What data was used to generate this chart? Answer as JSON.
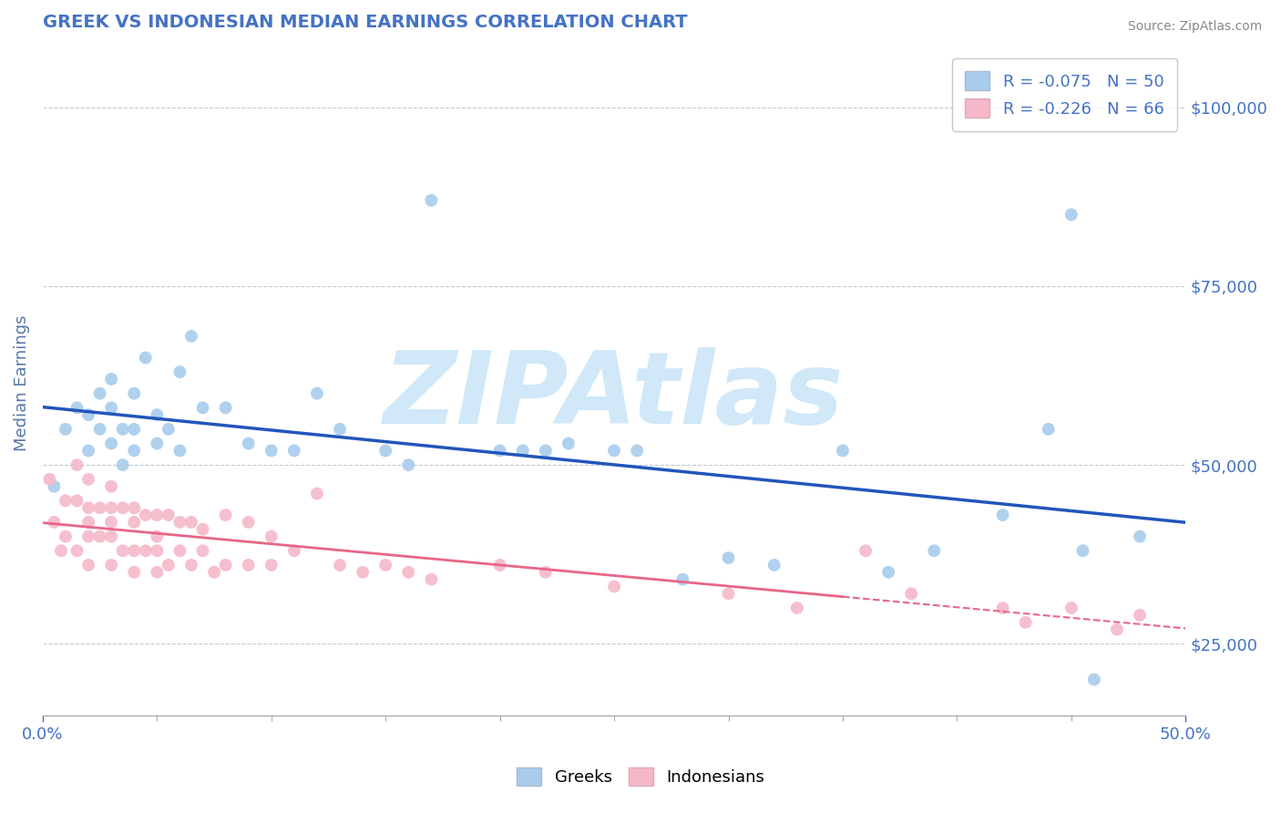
{
  "title": "GREEK VS INDONESIAN MEDIAN EARNINGS CORRELATION CHART",
  "source": "Source: ZipAtlas.com",
  "ylabel": "Median Earnings",
  "xlim": [
    0.0,
    0.5
  ],
  "ylim": [
    15000,
    108000
  ],
  "yticks": [
    25000,
    50000,
    75000,
    100000
  ],
  "xticks": [
    0.0,
    0.5
  ],
  "greeks_R": -0.075,
  "greeks_N": 50,
  "indonesians_R": -0.226,
  "indonesians_N": 66,
  "greek_color": "#a8ccec",
  "indonesian_color": "#f5b8c8",
  "greek_line_color": "#2255bb",
  "indonesian_line_color": "#e86688",
  "background_color": "#ffffff",
  "title_color": "#4472c4",
  "axis_label_color": "#5577aa",
  "tick_label_color": "#4472c4",
  "watermark": "ZIPAtlas",
  "watermark_color": "#d0e8f8",
  "greeks_x": [
    0.005,
    0.01,
    0.015,
    0.02,
    0.02,
    0.025,
    0.025,
    0.03,
    0.03,
    0.03,
    0.035,
    0.035,
    0.04,
    0.04,
    0.04,
    0.045,
    0.05,
    0.05,
    0.055,
    0.06,
    0.06,
    0.065,
    0.07,
    0.08,
    0.09,
    0.1,
    0.11,
    0.12,
    0.13,
    0.15,
    0.16,
    0.17,
    0.2,
    0.21,
    0.22,
    0.23,
    0.25,
    0.26,
    0.28,
    0.3,
    0.32,
    0.35,
    0.37,
    0.39,
    0.42,
    0.44,
    0.45,
    0.46,
    0.455,
    0.48
  ],
  "greeks_y": [
    47000,
    55000,
    58000,
    57000,
    52000,
    60000,
    55000,
    62000,
    58000,
    53000,
    55000,
    50000,
    60000,
    55000,
    52000,
    65000,
    57000,
    53000,
    55000,
    63000,
    52000,
    68000,
    58000,
    58000,
    53000,
    52000,
    52000,
    60000,
    55000,
    52000,
    50000,
    87000,
    52000,
    52000,
    52000,
    53000,
    52000,
    52000,
    34000,
    37000,
    36000,
    52000,
    35000,
    38000,
    43000,
    55000,
    85000,
    20000,
    38000,
    40000
  ],
  "indonesians_x": [
    0.003,
    0.005,
    0.008,
    0.01,
    0.01,
    0.015,
    0.015,
    0.015,
    0.02,
    0.02,
    0.02,
    0.02,
    0.02,
    0.025,
    0.025,
    0.03,
    0.03,
    0.03,
    0.03,
    0.03,
    0.035,
    0.035,
    0.04,
    0.04,
    0.04,
    0.04,
    0.045,
    0.045,
    0.05,
    0.05,
    0.05,
    0.05,
    0.055,
    0.055,
    0.06,
    0.06,
    0.065,
    0.065,
    0.07,
    0.07,
    0.075,
    0.08,
    0.08,
    0.09,
    0.09,
    0.1,
    0.1,
    0.11,
    0.12,
    0.13,
    0.14,
    0.15,
    0.16,
    0.17,
    0.2,
    0.22,
    0.25,
    0.3,
    0.33,
    0.36,
    0.38,
    0.42,
    0.43,
    0.45,
    0.47,
    0.48
  ],
  "indonesians_y": [
    48000,
    42000,
    38000,
    45000,
    40000,
    50000,
    45000,
    38000,
    48000,
    44000,
    42000,
    40000,
    36000,
    44000,
    40000,
    47000,
    44000,
    42000,
    40000,
    36000,
    44000,
    38000,
    44000,
    42000,
    38000,
    35000,
    43000,
    38000,
    43000,
    40000,
    38000,
    35000,
    43000,
    36000,
    42000,
    38000,
    42000,
    36000,
    41000,
    38000,
    35000,
    43000,
    36000,
    42000,
    36000,
    40000,
    36000,
    38000,
    46000,
    36000,
    35000,
    36000,
    35000,
    34000,
    36000,
    35000,
    33000,
    32000,
    30000,
    38000,
    32000,
    30000,
    28000,
    30000,
    27000,
    29000
  ]
}
